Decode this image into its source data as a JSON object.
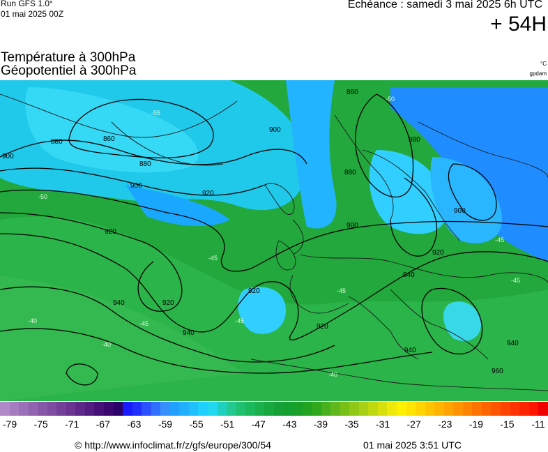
{
  "header": {
    "run_label": "Run GFS 1.0°",
    "run_date": "01 mai 2025 00Z",
    "echeance": "Echéance : samedi 3 mai 2025 6h UTC",
    "lead_time": "+ 54H",
    "title_line1": "Température à 300hPa",
    "title_line2": "Géopotentiel à 300hPa",
    "unit_temp": "°C",
    "unit_geo": "gpdam"
  },
  "map": {
    "contour_labels": [
      "860",
      "860",
      "880",
      "880",
      "880",
      "880",
      "900",
      "900",
      "900",
      "900",
      "900",
      "920",
      "920",
      "920",
      "920",
      "920",
      "920",
      "940",
      "940",
      "940",
      "940",
      "940",
      "960"
    ],
    "temp_labels": [
      "-40",
      "-40",
      "-40",
      "-45",
      "-45",
      "-45",
      "-45",
      "-45",
      "-45",
      "-50",
      "-50",
      "-55"
    ],
    "colors": {
      "ocean_green": "#22a83c",
      "cold_blue": "#1f9fff",
      "cyan": "#33d7ff",
      "land_line": "#1a1a1a",
      "contour": "#000000"
    }
  },
  "legend": {
    "tick_labels": [
      "-79",
      "-75",
      "-71",
      "-67",
      "-63",
      "-59",
      "-55",
      "-51",
      "-47",
      "-43",
      "-39",
      "-35",
      "-31",
      "-27",
      "-23",
      "-19",
      "-15",
      "-11"
    ],
    "colors": [
      "#b08ac8",
      "#a67cc0",
      "#9c70b8",
      "#9264b0",
      "#8858a8",
      "#7e4ca0",
      "#743f98",
      "#6a3490",
      "#5e2888",
      "#521c80",
      "#461078",
      "#3a0670",
      "#2a006a",
      "#1a1aff",
      "#2030ff",
      "#2a50ff",
      "#3070ff",
      "#3890ff",
      "#20a0ff",
      "#20b0ff",
      "#20c0ff",
      "#20d0ff",
      "#22d8f0",
      "#1fd0c0",
      "#22c890",
      "#1fc070",
      "#1cb85c",
      "#1ab04c",
      "#18a840",
      "#16a038",
      "#14a030",
      "#18a028",
      "#20a420",
      "#30a81c",
      "#48b01c",
      "#60b81c",
      "#78c018",
      "#90c818",
      "#a8d014",
      "#c0d810",
      "#d8e00c",
      "#f0e808",
      "#fff000",
      "#ffe400",
      "#ffd400",
      "#ffc400",
      "#ffb400",
      "#ffa400",
      "#ff9400",
      "#ff8400",
      "#ff7400",
      "#ff6400",
      "#ff5400",
      "#ff4400",
      "#ff3400",
      "#ff2400",
      "#ff1400",
      "#f00000"
    ],
    "footer_url": "© http://www.infoclimat.fr/z/gfs/europe/300/54",
    "footer_time": "01 mai 2025  3:51 UTC"
  }
}
